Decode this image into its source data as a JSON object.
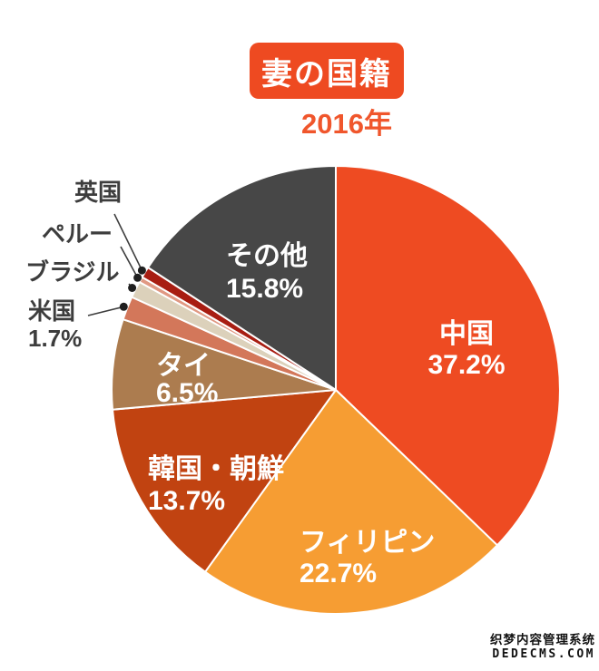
{
  "header": {
    "badge_label": "妻の国籍",
    "year": "2016年"
  },
  "chart_data": {
    "type": "pie",
    "title": "妻の国籍",
    "subtitle": "2016年",
    "direction": "clockwise",
    "start_angle_deg": 0,
    "slices": [
      {
        "label": "中国",
        "pct": 37.2,
        "pct_label": "37.2%",
        "color": "#EE4B22",
        "label_style": "inside"
      },
      {
        "label": "フィリピン",
        "pct": 22.7,
        "pct_label": "22.7%",
        "color": "#F69D33",
        "label_style": "inside"
      },
      {
        "label": "韓国・朝鮮",
        "pct": 13.7,
        "pct_label": "13.7%",
        "color": "#C14311",
        "label_style": "inside"
      },
      {
        "label": "タイ",
        "pct": 6.5,
        "pct_label": "6.5%",
        "color": "#AC7C4F",
        "label_style": "inside"
      },
      {
        "label": "米国",
        "pct": 1.7,
        "pct_label": "1.7%",
        "color": "#D3775A",
        "label_style": "outside"
      },
      {
        "label": "ブラジル",
        "pct": 1.2,
        "pct_estimated": true,
        "color": "#DCD1BB",
        "label_style": "outside"
      },
      {
        "label": "ペルー",
        "pct": 0.4,
        "pct_estimated": true,
        "color": "#E09883",
        "label_style": "outside"
      },
      {
        "label": "英国",
        "pct": 0.8,
        "pct_estimated": true,
        "color": "#A81D12",
        "label_style": "outside"
      },
      {
        "label": "その他",
        "pct": 15.8,
        "pct_label": "15.8%",
        "color": "#474747",
        "label_style": "inside"
      }
    ],
    "inside_label_color": "#ffffff",
    "outside_label_color": "#3D3D3D",
    "separator_color": "#ffffff"
  },
  "watermark": {
    "line1": "织梦内容管理系统",
    "line2": "DEDECMS.COM"
  }
}
